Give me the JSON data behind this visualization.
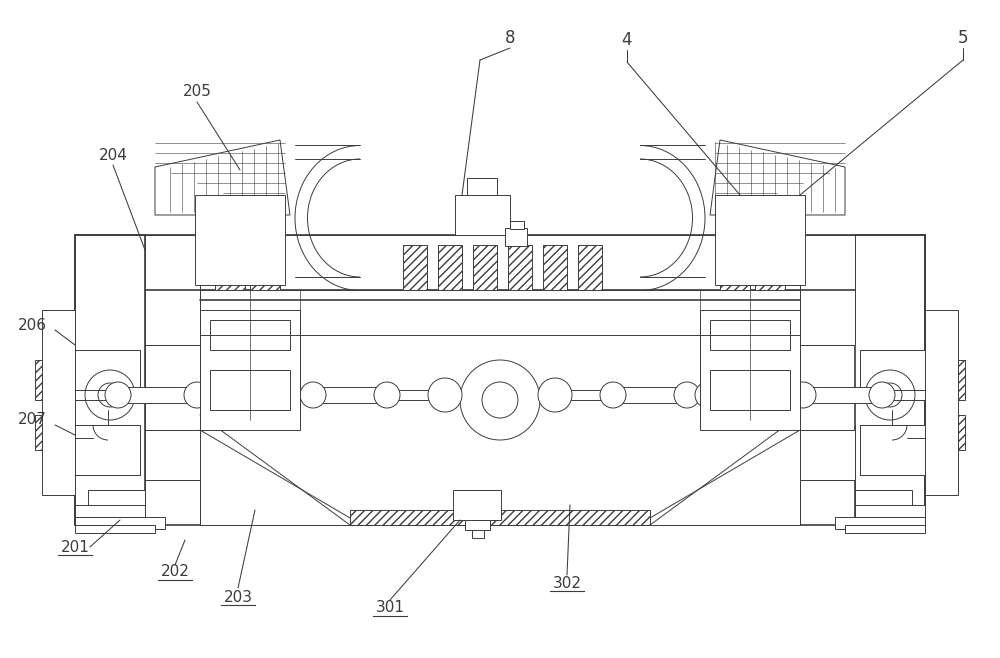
{
  "bg_color": "#ffffff",
  "lc": "#3c3c3c",
  "fig_w": 10.0,
  "fig_h": 6.58,
  "label_fs": 11,
  "lw_main": 1.2,
  "lw_thin": 0.7,
  "lw_ann": 0.75
}
